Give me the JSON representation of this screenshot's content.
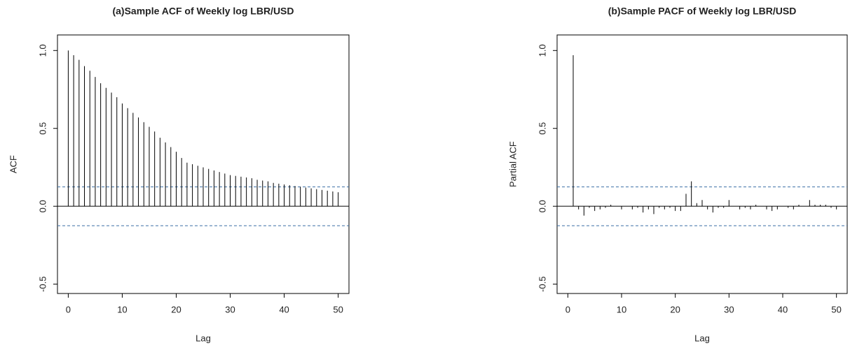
{
  "chart_data": [
    {
      "type": "stem",
      "title": "(a)Sample ACF of Weekly log LBR/USD",
      "xlabel": "Lag",
      "ylabel": "ACF",
      "x": [
        0,
        1,
        2,
        3,
        4,
        5,
        6,
        7,
        8,
        9,
        10,
        11,
        12,
        13,
        14,
        15,
        16,
        17,
        18,
        19,
        20,
        21,
        22,
        23,
        24,
        25,
        26,
        27,
        28,
        29,
        30,
        31,
        32,
        33,
        34,
        35,
        36,
        37,
        38,
        39,
        40,
        41,
        42,
        43,
        44,
        45,
        46,
        47,
        48,
        49,
        50
      ],
      "values": [
        1.0,
        0.97,
        0.94,
        0.9,
        0.87,
        0.83,
        0.79,
        0.76,
        0.73,
        0.7,
        0.66,
        0.63,
        0.6,
        0.57,
        0.54,
        0.51,
        0.48,
        0.44,
        0.41,
        0.38,
        0.35,
        0.31,
        0.28,
        0.27,
        0.26,
        0.25,
        0.24,
        0.23,
        0.22,
        0.21,
        0.2,
        0.195,
        0.19,
        0.185,
        0.18,
        0.17,
        0.165,
        0.16,
        0.15,
        0.145,
        0.14,
        0.135,
        0.13,
        0.125,
        0.12,
        0.115,
        0.11,
        0.105,
        0.1,
        0.095,
        0.09
      ],
      "color": "#000000",
      "conf_limit": 0.125,
      "conf_color": "#3a6ea5",
      "xlim": [
        -2,
        52
      ],
      "ylim": [
        -0.56,
        1.1
      ],
      "xticks": [
        0,
        10,
        20,
        30,
        40,
        50
      ],
      "yticks": [
        -0.5,
        {
          "value": 0,
          "label": "0.0"
        },
        0.5,
        {
          "value": 1,
          "label": "1.0"
        }
      ]
    },
    {
      "type": "stem",
      "title": "(b)Sample PACF of Weekly log LBR/USD",
      "xlabel": "Lag",
      "ylabel": "Partial ACF",
      "x": [
        1,
        2,
        3,
        4,
        5,
        6,
        7,
        8,
        9,
        10,
        11,
        12,
        13,
        14,
        15,
        16,
        17,
        18,
        19,
        20,
        21,
        22,
        23,
        24,
        25,
        26,
        27,
        28,
        29,
        30,
        31,
        32,
        33,
        34,
        35,
        36,
        37,
        38,
        39,
        40,
        41,
        42,
        43,
        44,
        45,
        46,
        47,
        48,
        49,
        50
      ],
      "values": [
        0.97,
        -0.02,
        -0.06,
        -0.01,
        -0.03,
        -0.02,
        -0.01,
        0.01,
        0.0,
        -0.02,
        0.0,
        -0.02,
        -0.01,
        -0.04,
        -0.02,
        -0.05,
        -0.01,
        -0.02,
        -0.01,
        -0.03,
        -0.03,
        0.08,
        0.16,
        0.02,
        0.04,
        -0.02,
        -0.04,
        -0.01,
        -0.01,
        0.04,
        0.0,
        -0.02,
        -0.01,
        -0.02,
        0.01,
        0.0,
        -0.02,
        -0.03,
        -0.02,
        0.0,
        -0.01,
        -0.02,
        0.01,
        0.0,
        0.04,
        0.01,
        0.01,
        0.01,
        -0.01,
        -0.02
      ],
      "color": "#000000",
      "conf_limit": 0.125,
      "conf_color": "#3a6ea5",
      "xlim": [
        -2,
        52
      ],
      "ylim": [
        -0.56,
        1.1
      ],
      "xticks": [
        0,
        10,
        20,
        30,
        40,
        50
      ],
      "yticks": [
        -0.5,
        {
          "value": 0,
          "label": "0.0"
        },
        0.5,
        {
          "value": 1,
          "label": "1.0"
        }
      ]
    }
  ]
}
